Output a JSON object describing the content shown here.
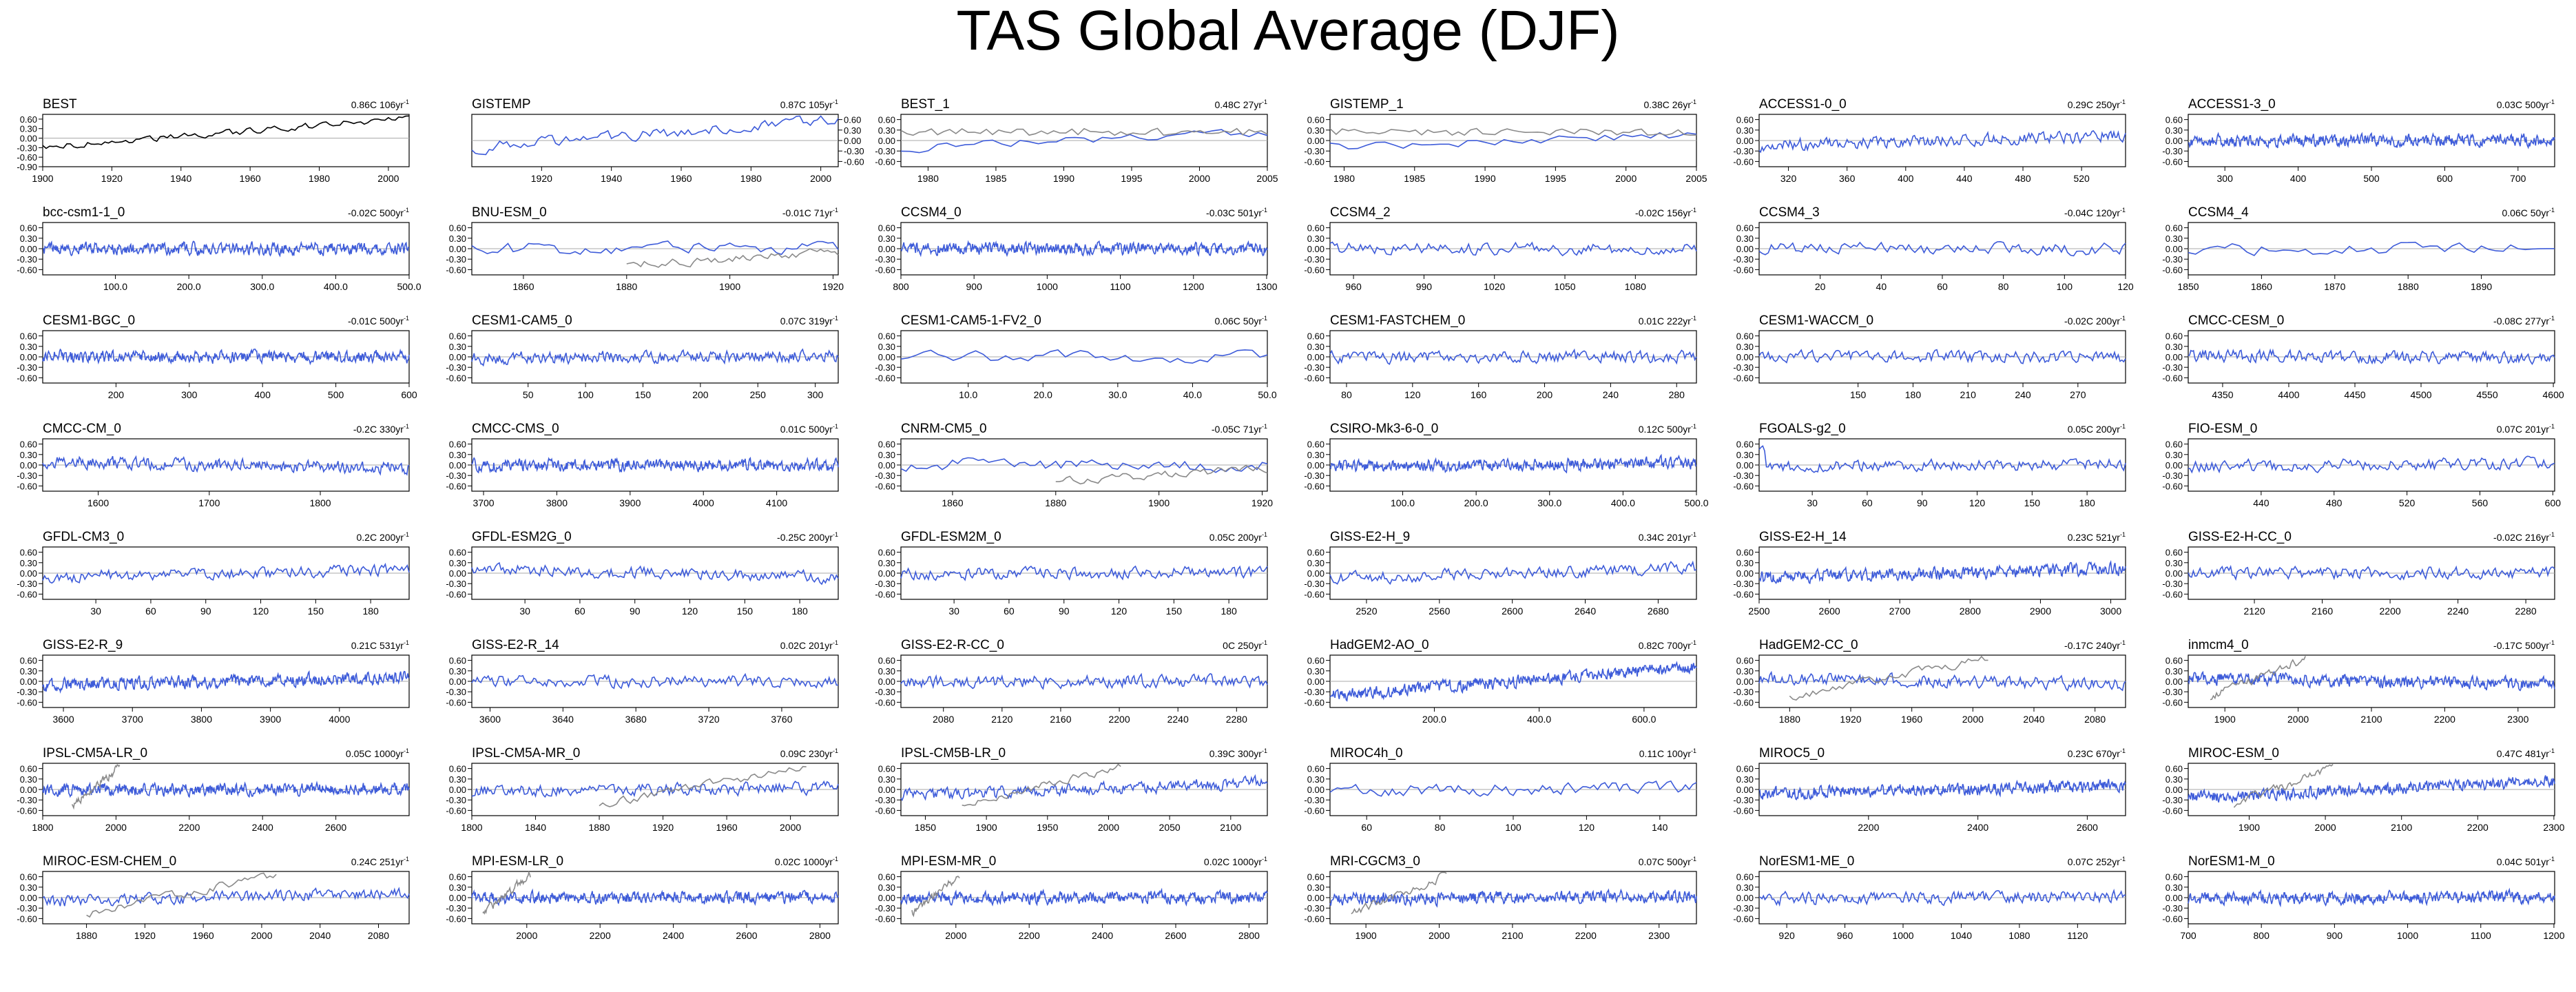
{
  "title": "TAS Global Average (DJF)",
  "colors": {
    "model": "#3d5bd9",
    "obs": "#8a8a8a",
    "best": "#000000",
    "zero": "#aaaaaa"
  },
  "y_ticks": [
    "0.60",
    "0.30",
    "0.00",
    "-0.30",
    "-0.60"
  ],
  "y_ticks_best": [
    "0.60",
    "0.30",
    "0.00",
    "-0.30",
    "-0.60",
    "-0.90"
  ],
  "chart_data": [
    {
      "type": "line",
      "name": "BEST",
      "stats": "0.86C 106yr",
      "x_ticks": [
        "1900",
        "1920",
        "1940",
        "1960",
        "1980",
        "2000"
      ],
      "xlim": [
        1900,
        2006
      ],
      "ylim": [
        -0.9,
        0.75
      ],
      "trend": 0.86,
      "obs": false,
      "black": true
    },
    {
      "type": "line",
      "name": "GISTEMP",
      "stats": "0.87C 105yr",
      "x_ticks": [
        "1920",
        "1940",
        "1960",
        "1980",
        "2000"
      ],
      "xlim": [
        1900,
        2005
      ],
      "ylim": [
        -0.75,
        0.75
      ],
      "trend": 0.87,
      "obs": false,
      "black": false,
      "yaxis": "right"
    },
    {
      "type": "line",
      "name": "BEST_1",
      "stats": "0.48C 27yr",
      "x_ticks": [
        "1980",
        "1985",
        "1990",
        "1995",
        "2000",
        "2005"
      ],
      "xlim": [
        1978,
        2005
      ],
      "ylim": [
        -0.75,
        0.75
      ],
      "trend": 0.48,
      "obs": true
    },
    {
      "type": "line",
      "name": "GISTEMP_1",
      "stats": "0.38C 26yr",
      "x_ticks": [
        "1980",
        "1985",
        "1990",
        "1995",
        "2000",
        "2005"
      ],
      "xlim": [
        1979,
        2005
      ],
      "ylim": [
        -0.75,
        0.75
      ],
      "trend": 0.38,
      "obs": true
    },
    {
      "type": "line",
      "name": "ACCESS1-0_0",
      "stats": "0.29C 250yr",
      "x_ticks": [
        "320",
        "360",
        "400",
        "440",
        "480",
        "520"
      ],
      "xlim": [
        300,
        550
      ],
      "ylim": [
        -0.75,
        0.75
      ],
      "trend": 0.29,
      "obs": false
    },
    {
      "type": "line",
      "name": "ACCESS1-3_0",
      "stats": "0.03C 500yr",
      "x_ticks": [
        "300",
        "400",
        "500",
        "600",
        "700"
      ],
      "xlim": [
        250,
        750
      ],
      "ylim": [
        -0.75,
        0.75
      ],
      "trend": 0.03,
      "obs": false
    },
    {
      "type": "line",
      "name": "bcc-csm1-1_0",
      "stats": "-0.02C 500yr",
      "x_ticks": [
        "100.0",
        "200.0",
        "300.0",
        "400.0",
        "500.0"
      ],
      "xlim": [
        1,
        500
      ],
      "ylim": [
        -0.75,
        0.75
      ],
      "trend": -0.02,
      "obs": false
    },
    {
      "type": "line",
      "name": "BNU-ESM_0",
      "stats": "-0.01C 71yr",
      "x_ticks": [
        "1860",
        "1880",
        "1900",
        "1920"
      ],
      "xlim": [
        1850,
        1921
      ],
      "ylim": [
        -0.75,
        0.75
      ],
      "trend": -0.01,
      "obs": true
    },
    {
      "type": "line",
      "name": "CCSM4_0",
      "stats": "-0.03C 501yr",
      "x_ticks": [
        "800",
        "900",
        "1000",
        "1100",
        "1200",
        "1300"
      ],
      "xlim": [
        800,
        1301
      ],
      "ylim": [
        -0.75,
        0.75
      ],
      "trend": -0.03,
      "obs": false
    },
    {
      "type": "line",
      "name": "CCSM4_2",
      "stats": "-0.02C 156yr",
      "x_ticks": [
        "960",
        "990",
        "1020",
        "1050",
        "1080"
      ],
      "xlim": [
        950,
        1106
      ],
      "ylim": [
        -0.75,
        0.75
      ],
      "trend": -0.02,
      "obs": false
    },
    {
      "type": "line",
      "name": "CCSM4_3",
      "stats": "-0.04C 120yr",
      "x_ticks": [
        "20",
        "40",
        "60",
        "80",
        "100",
        "120"
      ],
      "xlim": [
        0,
        120
      ],
      "ylim": [
        -0.75,
        0.75
      ],
      "trend": -0.04,
      "obs": false
    },
    {
      "type": "line",
      "name": "CCSM4_4",
      "stats": "0.06C 50yr",
      "x_ticks": [
        "1850",
        "1860",
        "1870",
        "1880",
        "1890"
      ],
      "xlim": [
        1850,
        1900
      ],
      "ylim": [
        -0.75,
        0.75
      ],
      "trend": 0.06,
      "obs": false
    },
    {
      "type": "line",
      "name": "CESM1-BGC_0",
      "stats": "-0.01C 500yr",
      "x_ticks": [
        "200",
        "300",
        "400",
        "500",
        "600"
      ],
      "xlim": [
        100,
        600
      ],
      "ylim": [
        -0.75,
        0.75
      ],
      "trend": -0.01,
      "obs": false
    },
    {
      "type": "line",
      "name": "CESM1-CAM5_0",
      "stats": "0.07C 319yr",
      "x_ticks": [
        "50",
        "100",
        "150",
        "200",
        "250",
        "300"
      ],
      "xlim": [
        1,
        320
      ],
      "ylim": [
        -0.75,
        0.75
      ],
      "trend": 0.07,
      "obs": false
    },
    {
      "type": "line",
      "name": "CESM1-CAM5-1-FV2_0",
      "stats": "0.06C 50yr",
      "x_ticks": [
        "10.0",
        "20.0",
        "30.0",
        "40.0",
        "50.0"
      ],
      "xlim": [
        1,
        50
      ],
      "ylim": [
        -0.75,
        0.75
      ],
      "trend": 0.06,
      "obs": false
    },
    {
      "type": "line",
      "name": "CESM1-FASTCHEM_0",
      "stats": "0.01C 222yr",
      "x_ticks": [
        "80",
        "120",
        "160",
        "200",
        "240",
        "280"
      ],
      "xlim": [
        70,
        292
      ],
      "ylim": [
        -0.75,
        0.75
      ],
      "trend": 0.01,
      "obs": false
    },
    {
      "type": "line",
      "name": "CESM1-WACCM_0",
      "stats": "-0.02C 200yr",
      "x_ticks": [
        "150",
        "180",
        "210",
        "240",
        "270"
      ],
      "xlim": [
        96,
        296
      ],
      "ylim": [
        -0.75,
        0.75
      ],
      "trend": -0.02,
      "obs": false
    },
    {
      "type": "line",
      "name": "CMCC-CESM_0",
      "stats": "-0.08C 277yr",
      "x_ticks": [
        "4350",
        "4400",
        "4450",
        "4500",
        "4550",
        "4600"
      ],
      "xlim": [
        4324,
        4601
      ],
      "ylim": [
        -0.75,
        0.75
      ],
      "trend": -0.08,
      "obs": false
    },
    {
      "type": "line",
      "name": "CMCC-CM_0",
      "stats": "-0.2C 330yr",
      "x_ticks": [
        "1600",
        "1700",
        "1800"
      ],
      "xlim": [
        1550,
        1880
      ],
      "ylim": [
        -0.75,
        0.75
      ],
      "trend": -0.2,
      "obs": false
    },
    {
      "type": "line",
      "name": "CMCC-CMS_0",
      "stats": "0.01C 500yr",
      "x_ticks": [
        "3700",
        "3800",
        "3900",
        "4000",
        "4100"
      ],
      "xlim": [
        3684,
        4184
      ],
      "ylim": [
        -0.75,
        0.75
      ],
      "trend": 0.01,
      "obs": false
    },
    {
      "type": "line",
      "name": "CNRM-CM5_0",
      "stats": "-0.05C 71yr",
      "x_ticks": [
        "1860",
        "1880",
        "1900",
        "1920"
      ],
      "xlim": [
        1850,
        1921
      ],
      "ylim": [
        -0.75,
        0.75
      ],
      "trend": -0.05,
      "obs": true
    },
    {
      "type": "line",
      "name": "CSIRO-Mk3-6-0_0",
      "stats": "0.12C 500yr",
      "x_ticks": [
        "100.0",
        "200.0",
        "300.0",
        "400.0",
        "500.0"
      ],
      "xlim": [
        1,
        500
      ],
      "ylim": [
        -0.75,
        0.75
      ],
      "trend": 0.12,
      "obs": false
    },
    {
      "type": "line",
      "name": "FGOALS-g2_0",
      "stats": "0.05C 200yr",
      "x_ticks": [
        "30",
        "60",
        "90",
        "120",
        "150",
        "180"
      ],
      "xlim": [
        1,
        201
      ],
      "ylim": [
        -0.75,
        0.75
      ],
      "trend": 0.05,
      "obs": false,
      "spike": true
    },
    {
      "type": "line",
      "name": "FIO-ESM_0",
      "stats": "0.07C 201yr",
      "x_ticks": [
        "440",
        "480",
        "520",
        "560",
        "600"
      ],
      "xlim": [
        400,
        601
      ],
      "ylim": [
        -0.75,
        0.75
      ],
      "trend": 0.07,
      "obs": false
    },
    {
      "type": "line",
      "name": "GFDL-CM3_0",
      "stats": "0.2C 200yr",
      "x_ticks": [
        "30",
        "60",
        "90",
        "120",
        "150",
        "180"
      ],
      "xlim": [
        1,
        201
      ],
      "ylim": [
        -0.75,
        0.75
      ],
      "trend": 0.2,
      "obs": false
    },
    {
      "type": "line",
      "name": "GFDL-ESM2G_0",
      "stats": "-0.25C 200yr",
      "x_ticks": [
        "30",
        "60",
        "90",
        "120",
        "150",
        "180"
      ],
      "xlim": [
        1,
        201
      ],
      "ylim": [
        -0.75,
        0.75
      ],
      "trend": -0.25,
      "obs": false
    },
    {
      "type": "line",
      "name": "GFDL-ESM2M_0",
      "stats": "0.05C 200yr",
      "x_ticks": [
        "30",
        "60",
        "90",
        "120",
        "150",
        "180"
      ],
      "xlim": [
        1,
        201
      ],
      "ylim": [
        -0.75,
        0.75
      ],
      "trend": 0.05,
      "obs": false
    },
    {
      "type": "line",
      "name": "GISS-E2-H_9",
      "stats": "0.34C 201yr",
      "x_ticks": [
        "2520",
        "2560",
        "2600",
        "2640",
        "2680"
      ],
      "xlim": [
        2500,
        2701
      ],
      "ylim": [
        -0.75,
        0.75
      ],
      "trend": 0.34,
      "obs": false
    },
    {
      "type": "line",
      "name": "GISS-E2-H_14",
      "stats": "0.23C 521yr",
      "x_ticks": [
        "2500",
        "2600",
        "2700",
        "2800",
        "2900",
        "3000"
      ],
      "xlim": [
        2500,
        3021
      ],
      "ylim": [
        -0.75,
        0.75
      ],
      "trend": 0.23,
      "obs": false
    },
    {
      "type": "line",
      "name": "GISS-E2-H-CC_0",
      "stats": "-0.02C 216yr",
      "x_ticks": [
        "2120",
        "2160",
        "2200",
        "2240",
        "2280"
      ],
      "xlim": [
        2081,
        2297
      ],
      "ylim": [
        -0.75,
        0.75
      ],
      "trend": -0.02,
      "obs": false
    },
    {
      "type": "line",
      "name": "GISS-E2-R_9",
      "stats": "0.21C 531yr",
      "x_ticks": [
        "3600",
        "3700",
        "3800",
        "3900",
        "4000"
      ],
      "xlim": [
        3570,
        4101
      ],
      "ylim": [
        -0.75,
        0.75
      ],
      "trend": 0.21,
      "obs": false
    },
    {
      "type": "line",
      "name": "GISS-E2-R_14",
      "stats": "0.02C 201yr",
      "x_ticks": [
        "3600",
        "3640",
        "3680",
        "3720",
        "3760"
      ],
      "xlim": [
        3590,
        3791
      ],
      "ylim": [
        -0.75,
        0.75
      ],
      "trend": 0.02,
      "obs": false
    },
    {
      "type": "line",
      "name": "GISS-E2-R-CC_0",
      "stats": "0C 250yr",
      "x_ticks": [
        "2080",
        "2120",
        "2160",
        "2200",
        "2240",
        "2280"
      ],
      "xlim": [
        2051,
        2301
      ],
      "ylim": [
        -0.75,
        0.75
      ],
      "trend": 0,
      "obs": false
    },
    {
      "type": "line",
      "name": "HadGEM2-AO_0",
      "stats": "0.82C 700yr",
      "x_ticks": [
        "200.0",
        "400.0",
        "600.0"
      ],
      "xlim": [
        1,
        700
      ],
      "ylim": [
        -0.75,
        0.75
      ],
      "trend": 0.82,
      "obs": false
    },
    {
      "type": "line",
      "name": "HadGEM2-CC_0",
      "stats": "-0.17C 240yr",
      "x_ticks": [
        "1880",
        "1920",
        "1960",
        "2000",
        "2040",
        "2080"
      ],
      "xlim": [
        1860,
        2100
      ],
      "ylim": [
        -0.75,
        0.75
      ],
      "trend": -0.17,
      "obs": true
    },
    {
      "type": "line",
      "name": "inmcm4_0",
      "stats": "-0.17C 500yr",
      "x_ticks": [
        "1900",
        "2000",
        "2100",
        "2200",
        "2300"
      ],
      "xlim": [
        1850,
        2350
      ],
      "ylim": [
        -0.75,
        0.75
      ],
      "trend": -0.17,
      "obs": true
    },
    {
      "type": "line",
      "name": "IPSL-CM5A-LR_0",
      "stats": "0.05C 1000yr",
      "x_ticks": [
        "1800",
        "2000",
        "2200",
        "2400",
        "2600"
      ],
      "xlim": [
        1800,
        2800
      ],
      "ylim": [
        -0.75,
        0.75
      ],
      "trend": 0.05,
      "obs": true
    },
    {
      "type": "line",
      "name": "IPSL-CM5A-MR_0",
      "stats": "0.09C 230yr",
      "x_ticks": [
        "1800",
        "1840",
        "1880",
        "1920",
        "1960",
        "2000"
      ],
      "xlim": [
        1800,
        2030
      ],
      "ylim": [
        -0.75,
        0.75
      ],
      "trend": 0.09,
      "obs": true
    },
    {
      "type": "line",
      "name": "IPSL-CM5B-LR_0",
      "stats": "0.39C 300yr",
      "x_ticks": [
        "1850",
        "1900",
        "1950",
        "2000",
        "2050",
        "2100"
      ],
      "xlim": [
        1830,
        2130
      ],
      "ylim": [
        -0.75,
        0.75
      ],
      "trend": 0.39,
      "obs": true
    },
    {
      "type": "line",
      "name": "MIROC4h_0",
      "stats": "0.11C 100yr",
      "x_ticks": [
        "60",
        "80",
        "100",
        "120",
        "140"
      ],
      "xlim": [
        50,
        150
      ],
      "ylim": [
        -0.75,
        0.75
      ],
      "trend": 0.11,
      "obs": false
    },
    {
      "type": "line",
      "name": "MIROC5_0",
      "stats": "0.23C 670yr",
      "x_ticks": [
        "2200",
        "2400",
        "2600"
      ],
      "xlim": [
        2000,
        2670
      ],
      "ylim": [
        -0.75,
        0.75
      ],
      "trend": 0.23,
      "obs": false
    },
    {
      "type": "line",
      "name": "MIROC-ESM_0",
      "stats": "0.47C 481yr",
      "x_ticks": [
        "1900",
        "2000",
        "2100",
        "2200",
        "2300"
      ],
      "xlim": [
        1820,
        2301
      ],
      "ylim": [
        -0.75,
        0.75
      ],
      "trend": 0.47,
      "obs": true
    },
    {
      "type": "line",
      "name": "MIROC-ESM-CHEM_0",
      "stats": "0.24C 251yr",
      "x_ticks": [
        "1880",
        "1920",
        "1960",
        "2000",
        "2040",
        "2080"
      ],
      "xlim": [
        1850,
        2101
      ],
      "ylim": [
        -0.75,
        0.75
      ],
      "trend": 0.24,
      "obs": true
    },
    {
      "type": "line",
      "name": "MPI-ESM-LR_0",
      "stats": "0.02C 1000yr",
      "x_ticks": [
        "2000",
        "2200",
        "2400",
        "2600",
        "2800"
      ],
      "xlim": [
        1850,
        2850
      ],
      "ylim": [
        -0.75,
        0.75
      ],
      "trend": 0.02,
      "obs": true
    },
    {
      "type": "line",
      "name": "MPI-ESM-MR_0",
      "stats": "0.02C 1000yr",
      "x_ticks": [
        "2000",
        "2200",
        "2400",
        "2600",
        "2800"
      ],
      "xlim": [
        1850,
        2850
      ],
      "ylim": [
        -0.75,
        0.75
      ],
      "trend": 0.02,
      "obs": true
    },
    {
      "type": "line",
      "name": "MRI-CGCM3_0",
      "stats": "0.07C 500yr",
      "x_ticks": [
        "1900",
        "2000",
        "2100",
        "2200",
        "2300"
      ],
      "xlim": [
        1851,
        2351
      ],
      "ylim": [
        -0.75,
        0.75
      ],
      "trend": 0.07,
      "obs": true
    },
    {
      "type": "line",
      "name": "NorESM1-ME_0",
      "stats": "0.07C 252yr",
      "x_ticks": [
        "920",
        "960",
        "1000",
        "1040",
        "1080",
        "1120"
      ],
      "xlim": [
        901,
        1153
      ],
      "ylim": [
        -0.75,
        0.75
      ],
      "trend": 0.07,
      "obs": false
    },
    {
      "type": "line",
      "name": "NorESM1-M_0",
      "stats": "0.04C 501yr",
      "x_ticks": [
        "700",
        "800",
        "900",
        "1000",
        "1100",
        "1200"
      ],
      "xlim": [
        700,
        1201
      ],
      "ylim": [
        -0.75,
        0.75
      ],
      "trend": 0.04,
      "obs": false
    }
  ]
}
